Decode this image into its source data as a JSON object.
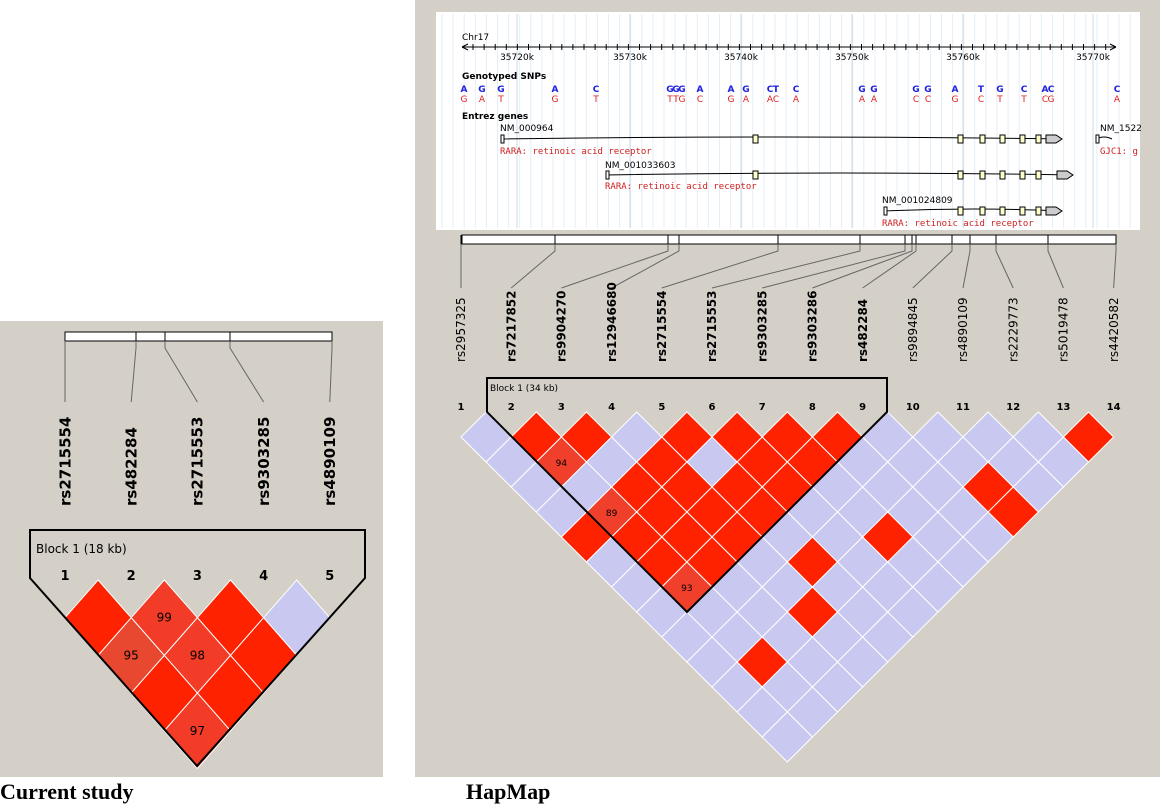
{
  "left_panel": {
    "caption": "Current study",
    "snps": [
      "rs2715554",
      "rs482284",
      "rs2715553",
      "rs9303285",
      "rs4890109"
    ],
    "block_label": "Block 1 (18 kb)",
    "indices": [
      1,
      2,
      3,
      4,
      5
    ],
    "ld": [
      [
        "#ff2200",
        {
          "color": "#f23c28",
          "value": 99
        },
        "#ff2200",
        "#c8c8f0"
      ],
      [
        {
          "color": "#e8482f",
          "value": 95
        },
        {
          "color": "#f23c28",
          "value": 98
        },
        "#ff2200"
      ],
      [
        "#ff2200",
        "#ff2200"
      ],
      [
        {
          "color": "#f23c28",
          "value": 97
        }
      ]
    ]
  },
  "right_panel": {
    "caption": "HapMap",
    "chromosome": "Chr17",
    "ruler_ticks": [
      "35720k",
      "35730k",
      "35740k",
      "35750k",
      "35760k",
      "35770k"
    ],
    "snp_track_title": "Genotyped SNPs",
    "snp_alleles": [
      [
        "A",
        "G"
      ],
      [
        "G",
        "A"
      ],
      [
        "G",
        "T"
      ],
      [
        "A",
        "G"
      ],
      [
        "C",
        "T"
      ],
      [
        "G",
        "T"
      ],
      [
        "G",
        "T"
      ],
      [
        "G",
        "G"
      ],
      [
        "A",
        "C"
      ],
      [
        "A",
        "G"
      ],
      [
        "G",
        "A"
      ],
      [
        "C",
        "A"
      ],
      [
        "T",
        "C"
      ],
      [
        "C",
        "A"
      ],
      [
        "G",
        "A"
      ],
      [
        "G",
        "A"
      ],
      [
        "G",
        "C"
      ],
      [
        "G",
        "C"
      ],
      [
        "A",
        "G"
      ],
      [
        "T",
        "C"
      ],
      [
        "G",
        "T"
      ],
      [
        "C",
        "T"
      ],
      [
        "A",
        "C"
      ],
      [
        "C",
        "G"
      ],
      [
        "C",
        "A"
      ]
    ],
    "gene_track_title": "Entrez genes",
    "genes": [
      {
        "id": "NM_000964",
        "desc": "RARA: retinoic acid receptor"
      },
      {
        "id": "NM_001033603",
        "desc": "RARA: retinoic acid receptor"
      },
      {
        "id": "NM_001024809",
        "desc": "RARA: retinoic acid receptor"
      },
      {
        "id": "NM_1522",
        "desc": "GJC1: g"
      }
    ],
    "snps": [
      "rs2957325",
      "rs7217852",
      "rs9904270",
      "rs12946680",
      "rs2715554",
      "rs2715553",
      "rs9303285",
      "rs9303286",
      "rs482284",
      "rs9894845",
      "rs4890109",
      "rs2229773",
      "rs5019478",
      "rs4420582"
    ],
    "bold": [
      false,
      true,
      true,
      true,
      true,
      true,
      true,
      true,
      true,
      false,
      false,
      false,
      false,
      false
    ],
    "block_label": "Block 1 (34 kb)",
    "indices": [
      1,
      2,
      3,
      4,
      5,
      6,
      7,
      8,
      9,
      10,
      11,
      12,
      13,
      14
    ],
    "ld": [
      [
        "#c8c8f0",
        "#ff2200",
        "#ff2200",
        "#c8c8f0",
        "#ff2200",
        "#ff2200",
        "#ff2200",
        "#ff2200",
        "#c8c8f0",
        "#c8c8f0",
        "#c8c8f0",
        "#c8c8f0",
        "#ff2200"
      ],
      [
        "#c8c8f0",
        {
          "color": "#f0402c",
          "value": 94
        },
        "#c8c8f0",
        "#ff2200",
        "#c8c8f0",
        "#ff2200",
        "#ff2200",
        "#c8c8f0",
        "#c8c8f0",
        "#c8c8f0",
        "#c8c8f0",
        "#c8c8f0"
      ],
      [
        "#c8c8f0",
        "#c8c8f0",
        "#ff2200",
        "#ff2200",
        "#ff2200",
        "#ff2200",
        "#c8c8f0",
        "#c8c8f0",
        "#c8c8f0",
        "#ff2200",
        "#c8c8f0"
      ],
      [
        "#c8c8f0",
        {
          "color": "#f0402c",
          "value": 89
        },
        "#ff2200",
        "#ff2200",
        "#ff2200",
        "#c8c8f0",
        "#c8c8f0",
        "#c8c8f0",
        "#c8c8f0",
        "#ff2200"
      ],
      [
        "#ff2200",
        "#ff2200",
        "#ff2200",
        "#ff2200",
        "#c8c8f0",
        "#c8c8f0",
        "#ff2200",
        "#c8c8f0",
        "#c8c8f0"
      ],
      [
        "#c8c8f0",
        "#ff2200",
        "#ff2200",
        "#c8c8f0",
        "#ff2200",
        "#c8c8f0",
        "#c8c8f0",
        "#c8c8f0"
      ],
      [
        "#c8c8f0",
        {
          "color": "#f0402c",
          "value": 93
        },
        "#c8c8f0",
        "#c8c8f0",
        "#c8c8f0",
        "#c8c8f0",
        "#c8c8f0"
      ],
      [
        "#c8c8f0",
        "#c8c8f0",
        "#c8c8f0",
        "#ff2200",
        "#c8c8f0",
        "#c8c8f0"
      ],
      [
        "#c8c8f0",
        "#c8c8f0",
        "#c8c8f0",
        "#c8c8f0",
        "#c8c8f0"
      ],
      [
        "#c8c8f0",
        "#ff2200",
        "#c8c8f0",
        "#c8c8f0"
      ],
      [
        "#c8c8f0",
        "#c8c8f0",
        "#c8c8f0"
      ],
      [
        "#c8c8f0",
        "#c8c8f0"
      ],
      [
        "#c8c8f0"
      ]
    ]
  }
}
